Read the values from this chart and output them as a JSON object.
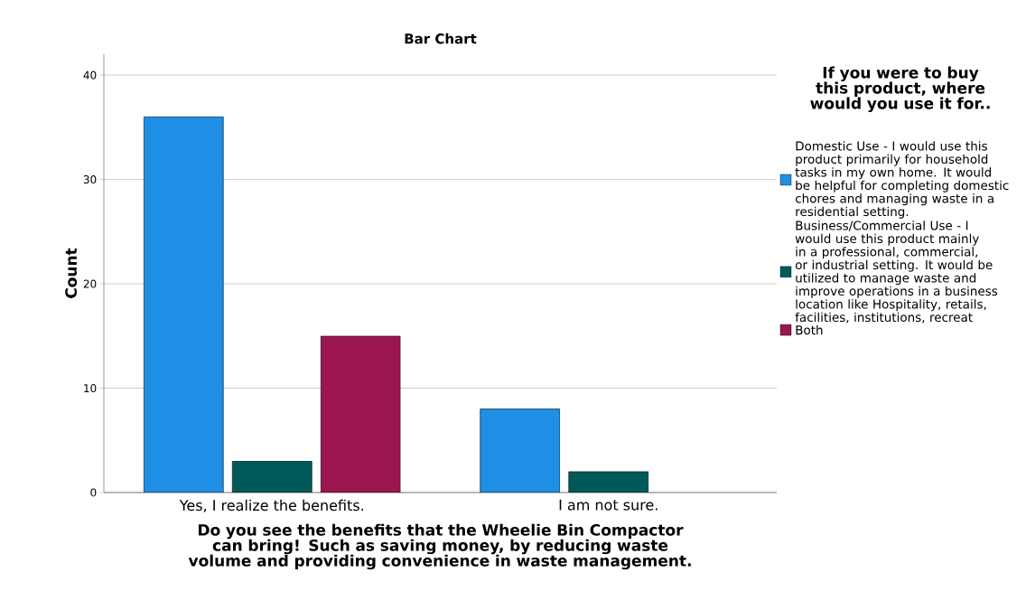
{
  "chart_data": {
    "type": "bar",
    "title": "Bar Chart",
    "xlabel": "Do you see the benefits that the Wheelie Bin Compactor can bring! Such as saving money, by reducing waste volume and providing convenience in waste management.",
    "ylabel": "Count",
    "legend_title": "If you were to buy this product, where would you use it for..",
    "categories": [
      "Yes, I realize the benefits.",
      "I am not sure."
    ],
    "series": [
      {
        "name": "Domestic Use - I would use this product primarily for household tasks in my own home. It would be helpful for completing domestic chores and managing waste in a residential setting.",
        "color": "#1f8fe6",
        "values": [
          36,
          8
        ]
      },
      {
        "name": "Business/Commercial Use - I would use this product mainly in a professional, commercial, or industrial setting. It would be utilized to manage waste and improve operations in a business location like Hospitality, retails, facilities, institutions, recreat",
        "color": "#005a5a",
        "values": [
          3,
          2
        ]
      },
      {
        "name": "Both",
        "color": "#9b1650",
        "values": [
          15,
          null
        ]
      }
    ],
    "ylim": [
      0,
      42
    ],
    "yticks": [
      0,
      10,
      20,
      30,
      40
    ],
    "grid": "y",
    "legend": "right"
  }
}
